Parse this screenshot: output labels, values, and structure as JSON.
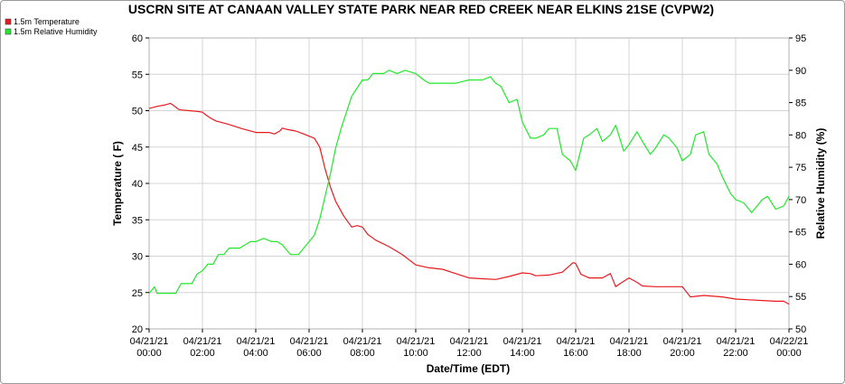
{
  "chart_data": {
    "type": "line",
    "title": "USCRN SITE AT CANAAN VALLEY STATE PARK NEAR RED CREEK NEAR ELKINS 21SE (CVPW2)",
    "xlabel": "Date/Time (EDT)",
    "ylabel": "Temperature ( F)",
    "y2label": "Relative Humidity (%)",
    "ylim": [
      20,
      60
    ],
    "y2lim": [
      50,
      95
    ],
    "yticks": [
      "20",
      "25",
      "30",
      "35",
      "40",
      "45",
      "50",
      "55",
      "60"
    ],
    "y2ticks": [
      "50",
      "55",
      "60",
      "65",
      "70",
      "75",
      "80",
      "85",
      "90",
      "95"
    ],
    "xlim": [
      0,
      24
    ],
    "xticks": [
      {
        "date": "04/21/21",
        "time": "00:00"
      },
      {
        "date": "04/21/21",
        "time": "02:00"
      },
      {
        "date": "04/21/21",
        "time": "04:00"
      },
      {
        "date": "04/21/21",
        "time": "06:00"
      },
      {
        "date": "04/21/21",
        "time": "08:00"
      },
      {
        "date": "04/21/21",
        "time": "10:00"
      },
      {
        "date": "04/21/21",
        "time": "12:00"
      },
      {
        "date": "04/21/21",
        "time": "14:00"
      },
      {
        "date": "04/21/21",
        "time": "16:00"
      },
      {
        "date": "04/21/21",
        "time": "18:00"
      },
      {
        "date": "04/21/21",
        "time": "20:00"
      },
      {
        "date": "04/21/21",
        "time": "22:00"
      },
      {
        "date": "04/22/21",
        "time": "00:00"
      }
    ],
    "grid": true,
    "legend_position": "top-left",
    "series": [
      {
        "name": "1.5m Temperature",
        "axis": "left",
        "color": "#e8191e",
        "x": [
          0,
          0.3,
          0.6,
          0.8,
          1.0,
          1.1,
          1.2,
          1.5,
          1.8,
          2.0,
          2.1,
          2.3,
          2.5,
          3.0,
          3.5,
          4.0,
          4.5,
          4.7,
          4.9,
          5.0,
          5.2,
          5.5,
          5.8,
          6.0,
          6.2,
          6.4,
          6.6,
          6.8,
          7.0,
          7.3,
          7.6,
          7.8,
          8.0,
          8.2,
          8.5,
          9.0,
          9.5,
          10.0,
          10.5,
          11.0,
          11.5,
          12.0,
          12.5,
          13.0,
          13.5,
          14.0,
          14.3,
          14.5,
          15.0,
          15.5,
          15.9,
          16.0,
          16.2,
          16.5,
          17.0,
          17.3,
          17.5,
          17.7,
          18.0,
          18.3,
          18.5,
          19.0,
          19.5,
          19.8,
          20.0,
          20.3,
          20.8,
          21.5,
          22.0,
          22.5,
          23.0,
          23.5,
          23.8,
          24.0
        ],
        "values": [
          50.3,
          50.6,
          50.8,
          51.0,
          50.5,
          50.2,
          50.1,
          50.0,
          49.9,
          49.8,
          49.5,
          49.0,
          48.6,
          48.1,
          47.5,
          47.0,
          47.0,
          46.8,
          47.2,
          47.6,
          47.4,
          47.2,
          46.8,
          46.5,
          46.2,
          45.0,
          42.0,
          39.5,
          37.5,
          35.5,
          34.0,
          34.2,
          34.0,
          33.0,
          32.2,
          31.3,
          30.2,
          28.8,
          28.4,
          28.2,
          27.6,
          27.0,
          26.9,
          26.8,
          27.2,
          27.7,
          27.6,
          27.3,
          27.4,
          27.8,
          29.1,
          29.0,
          27.5,
          27.0,
          27.0,
          27.6,
          25.8,
          26.3,
          27.0,
          26.4,
          25.9,
          25.8,
          25.8,
          25.8,
          25.8,
          24.4,
          24.6,
          24.4,
          24.1,
          24.0,
          23.9,
          23.8,
          23.8,
          23.4
        ]
      },
      {
        "name": "1.5m Relative Humidity",
        "axis": "right",
        "color": "#22e82c",
        "x": [
          0,
          0.2,
          0.3,
          0.5,
          1.0,
          1.2,
          1.4,
          1.6,
          1.8,
          2.0,
          2.2,
          2.4,
          2.6,
          2.8,
          3.0,
          3.2,
          3.4,
          3.6,
          3.8,
          4.0,
          4.3,
          4.6,
          4.8,
          5.0,
          5.3,
          5.6,
          5.8,
          6.0,
          6.2,
          6.4,
          6.6,
          6.8,
          7.0,
          7.2,
          7.4,
          7.6,
          8.0,
          8.2,
          8.4,
          8.8,
          9.0,
          9.3,
          9.6,
          10.0,
          10.3,
          10.5,
          11.0,
          11.3,
          11.5,
          12.0,
          12.5,
          12.8,
          13.0,
          13.2,
          13.5,
          13.8,
          14.0,
          14.3,
          14.5,
          14.8,
          15.0,
          15.3,
          15.5,
          15.8,
          16.0,
          16.3,
          16.5,
          16.8,
          17.0,
          17.3,
          17.5,
          17.8,
          18.0,
          18.3,
          18.5,
          18.8,
          19.0,
          19.3,
          19.5,
          19.8,
          20.0,
          20.3,
          20.5,
          20.8,
          21.0,
          21.3,
          21.5,
          21.8,
          22.0,
          22.3,
          22.6,
          22.8,
          23.0,
          23.2,
          23.5,
          23.8,
          24.0
        ],
        "values": [
          55.5,
          56.5,
          55.5,
          55.5,
          55.5,
          57.0,
          57.0,
          57.0,
          58.5,
          59.0,
          60.0,
          60.0,
          61.5,
          61.5,
          62.5,
          62.5,
          62.5,
          63.0,
          63.5,
          63.5,
          64.0,
          63.5,
          63.5,
          63.0,
          61.5,
          61.5,
          62.5,
          63.5,
          64.5,
          67.0,
          70.5,
          74.0,
          78.0,
          81.0,
          83.5,
          86.0,
          88.5,
          88.5,
          89.5,
          89.5,
          90.0,
          89.5,
          90.0,
          89.5,
          88.5,
          88.0,
          88.0,
          88.0,
          88.0,
          88.5,
          88.5,
          89.0,
          88.0,
          87.5,
          85.0,
          85.5,
          82.0,
          79.5,
          79.5,
          80.0,
          81.0,
          81.0,
          77.0,
          76.0,
          74.5,
          79.5,
          80.0,
          81.0,
          79.0,
          80.0,
          81.5,
          77.5,
          78.5,
          80.5,
          79.0,
          77.0,
          78.0,
          80.0,
          79.5,
          78.0,
          76.0,
          77.0,
          80.0,
          80.5,
          77.0,
          75.5,
          73.5,
          71.0,
          70.0,
          69.5,
          68.0,
          69.0,
          70.0,
          70.5,
          68.5,
          69.0,
          70.5
        ]
      }
    ]
  }
}
